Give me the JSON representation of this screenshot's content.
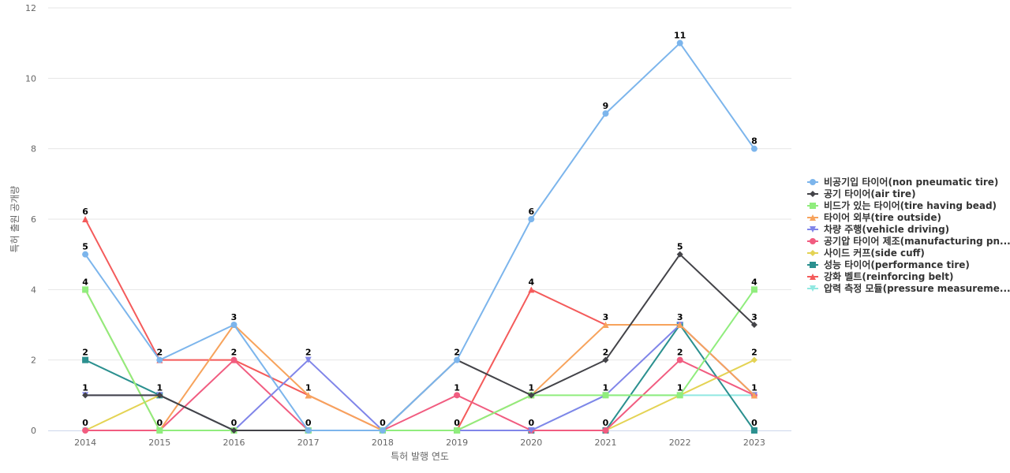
{
  "chart_data": {
    "type": "line",
    "xlabel": "특허 발행 연도",
    "ylabel": "특허 출원 공개량",
    "ylim": [
      0,
      12
    ],
    "yticks": [
      0,
      2,
      4,
      6,
      8,
      10,
      12
    ],
    "grid": true,
    "legend_position": "right",
    "x": [
      "2014",
      "2015",
      "2016",
      "2017",
      "2018",
      "2019",
      "2020",
      "2021",
      "2022",
      "2023"
    ],
    "series": [
      {
        "name": "비공기입 타이어(non pneumatic tire)",
        "color": "#7cb5ec",
        "marker": "circle",
        "values": [
          5,
          2,
          3,
          0,
          0,
          2,
          6,
          9,
          11,
          8
        ]
      },
      {
        "name": "공기 타이어(air tire)",
        "color": "#434348",
        "marker": "diamond",
        "values": [
          1,
          1,
          0,
          0,
          0,
          2,
          1,
          2,
          5,
          3
        ]
      },
      {
        "name": "비드가 있는 타이어(tire having bead)",
        "color": "#90ed7d",
        "marker": "square",
        "values": [
          4,
          0,
          0,
          0,
          0,
          0,
          1,
          1,
          1,
          4
        ]
      },
      {
        "name": "타이어 외부(tire outside)",
        "color": "#f7a35c",
        "marker": "triangle",
        "values": [
          4,
          0,
          3,
          1,
          0,
          0,
          1,
          3,
          3,
          1
        ]
      },
      {
        "name": "차량 주행(vehicle driving)",
        "color": "#8085e9",
        "marker": "triangle-down",
        "values": [
          1,
          1,
          0,
          2,
          0,
          0,
          0,
          1,
          3,
          1
        ]
      },
      {
        "name": "공기압 타이어 제조(manufacturing pn...",
        "color": "#f15c80",
        "marker": "circle",
        "values": [
          0,
          0,
          2,
          0,
          0,
          1,
          0,
          0,
          2,
          1
        ]
      },
      {
        "name": "사이드 커프(side cuff)",
        "color": "#e4d354",
        "marker": "diamond",
        "values": [
          0,
          1,
          0,
          0,
          0,
          0,
          0,
          0,
          1,
          2
        ]
      },
      {
        "name": "성능 타이어(performance tire)",
        "color": "#2b908f",
        "marker": "square",
        "values": [
          2,
          1,
          0,
          0,
          0,
          0,
          0,
          0,
          3,
          0
        ]
      },
      {
        "name": "강화 벨트(reinforcing belt)",
        "color": "#f45b5b",
        "marker": "triangle",
        "values": [
          6,
          2,
          2,
          1,
          0,
          0,
          4,
          3,
          3,
          1
        ]
      },
      {
        "name": "압력 측정 모듈(pressure measureme...",
        "color": "#91e8e1",
        "marker": "triangle-down",
        "values": [
          0,
          0,
          0,
          0,
          0,
          0,
          0,
          1,
          1,
          1
        ]
      }
    ],
    "data_labels": [
      {
        "x": "2014",
        "values": [
          6,
          5,
          4,
          2,
          1,
          0
        ]
      },
      {
        "x": "2015",
        "values": [
          2,
          1,
          0
        ]
      },
      {
        "x": "2016",
        "values": [
          3,
          2,
          0
        ]
      },
      {
        "x": "2017",
        "values": [
          2,
          1,
          0
        ]
      },
      {
        "x": "2018",
        "values": [
          0
        ]
      },
      {
        "x": "2019",
        "values": [
          2,
          1,
          0
        ]
      },
      {
        "x": "2020",
        "values": [
          6,
          4,
          1,
          0
        ]
      },
      {
        "x": "2021",
        "values": [
          9,
          3,
          2,
          1,
          0
        ]
      },
      {
        "x": "2022",
        "values": [
          11,
          5,
          3,
          2,
          1
        ]
      },
      {
        "x": "2023",
        "values": [
          8,
          4,
          3,
          2,
          1,
          0
        ]
      }
    ]
  }
}
